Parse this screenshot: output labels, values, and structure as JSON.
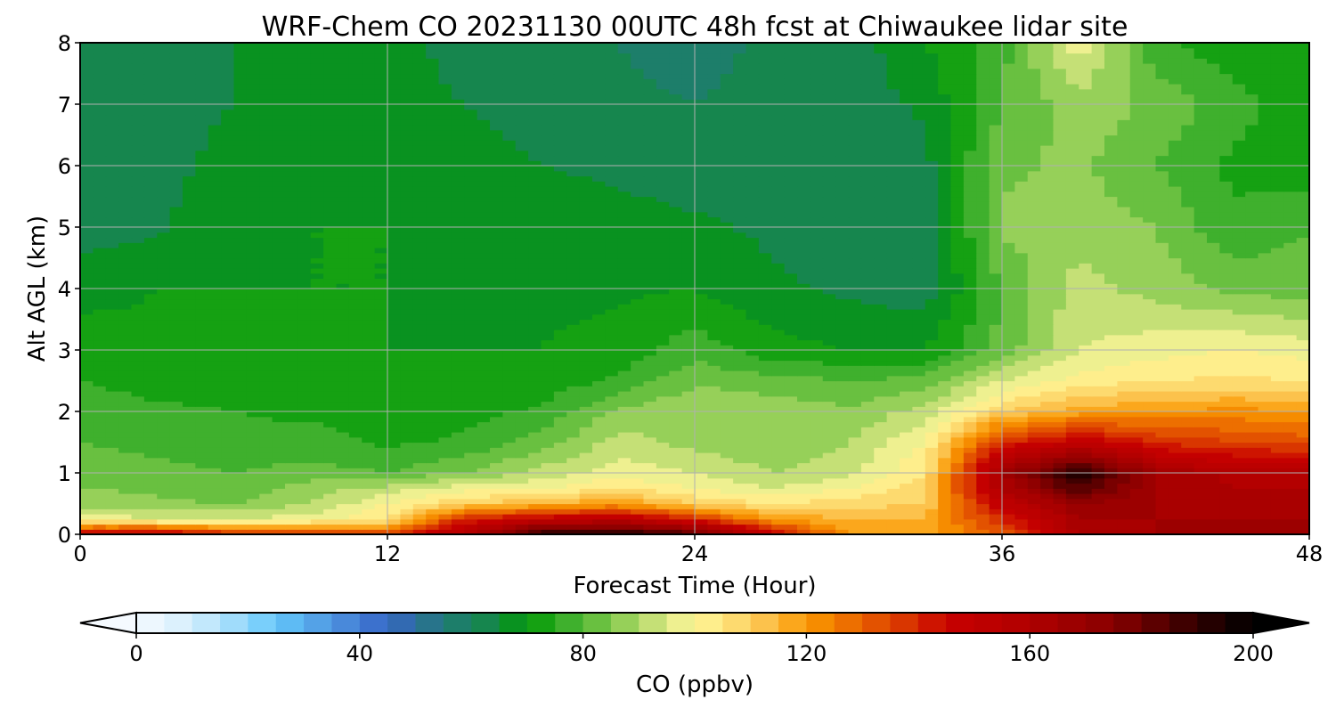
{
  "chart_data": {
    "type": "heatmap",
    "subtype": "filled-contour",
    "title": "WRF-Chem CO  20231130 00UTC 48h fcst at Chiwaukee lidar site",
    "xlabel": "Forecast Time (Hour)",
    "ylabel": "Alt AGL (km)",
    "xlim": [
      0,
      48
    ],
    "ylim": [
      0,
      8
    ],
    "xticks": [
      "0",
      "12",
      "24",
      "36",
      "48"
    ],
    "xtick_values": [
      0,
      12,
      24,
      36,
      48
    ],
    "yticks": [
      "0",
      "1",
      "2",
      "3",
      "4",
      "5",
      "6",
      "7",
      "8"
    ],
    "ytick_values": [
      0,
      1,
      2,
      3,
      4,
      5,
      6,
      7,
      8
    ],
    "grid": true,
    "x": [
      0,
      3,
      6,
      9,
      12,
      15,
      18,
      21,
      24,
      27,
      30,
      33,
      36,
      39,
      42,
      45,
      48
    ],
    "y": [
      0,
      0.25,
      0.5,
      0.75,
      1,
      1.5,
      2,
      2.5,
      3,
      4,
      5,
      6,
      7,
      8
    ],
    "z": [
      [
        150,
        155,
        140,
        140,
        135,
        160,
        195,
        195,
        185,
        150,
        120,
        118,
        130,
        160,
        165,
        165,
        165
      ],
      [
        100,
        95,
        95,
        98,
        105,
        140,
        150,
        155,
        140,
        120,
        115,
        115,
        140,
        165,
        165,
        165,
        165
      ],
      [
        88,
        86,
        85,
        90,
        100,
        110,
        115,
        120,
        110,
        105,
        108,
        110,
        150,
        170,
        165,
        162,
        162
      ],
      [
        85,
        84,
        82,
        88,
        92,
        98,
        100,
        105,
        100,
        95,
        100,
        110,
        160,
        185,
        165,
        160,
        160
      ],
      [
        83,
        82,
        80,
        82,
        80,
        85,
        92,
        98,
        95,
        90,
        93,
        105,
        165,
        195,
        165,
        158,
        158
      ],
      [
        80,
        78,
        76,
        77,
        74,
        76,
        82,
        92,
        88,
        86,
        90,
        100,
        140,
        150,
        140,
        135,
        133
      ],
      [
        78,
        76,
        75,
        74,
        72,
        73,
        76,
        86,
        90,
        88,
        86,
        92,
        110,
        118,
        120,
        122,
        120
      ],
      [
        75,
        73,
        72,
        72,
        71,
        71,
        72,
        76,
        84,
        82,
        80,
        82,
        95,
        102,
        105,
        106,
        105
      ],
      [
        73,
        71,
        70,
        71,
        70,
        70,
        70,
        72,
        78,
        72,
        70,
        70,
        82,
        95,
        98,
        100,
        98
      ],
      [
        68,
        70,
        70,
        70,
        70,
        69,
        69,
        69,
        70,
        66,
        64,
        62,
        80,
        92,
        88,
        84,
        82
      ],
      [
        63,
        64,
        69,
        70,
        70,
        69,
        68,
        67,
        66,
        64,
        62,
        61,
        86,
        88,
        85,
        76,
        80
      ],
      [
        63,
        64,
        66,
        68,
        68,
        67,
        65,
        64,
        62,
        63,
        62,
        63,
        84,
        86,
        80,
        74,
        72
      ],
      [
        64,
        64,
        65,
        66,
        66,
        65,
        63,
        61,
        60,
        62,
        62,
        66,
        80,
        88,
        84,
        77,
        72
      ],
      [
        64,
        64,
        65,
        66,
        66,
        64,
        62,
        60,
        58,
        61,
        62,
        70,
        78,
        98,
        76,
        72,
        70
      ]
    ],
    "colorbar": {
      "label": "CO  (ppbv)",
      "range": [
        0,
        200
      ],
      "step": 5,
      "extend": "both",
      "ticks": [
        "0",
        "40",
        "80",
        "120",
        "160",
        "200"
      ],
      "tick_values": [
        0,
        40,
        80,
        120,
        160,
        200
      ],
      "color_stops": [
        [
          0,
          "#f5faff"
        ],
        [
          10,
          "#d3eefc"
        ],
        [
          20,
          "#8fd6fb"
        ],
        [
          25,
          "#63c8fb"
        ],
        [
          35,
          "#4f95e0"
        ],
        [
          45,
          "#3565c6"
        ],
        [
          50,
          "#2f6e9e"
        ],
        [
          55,
          "#207a78"
        ],
        [
          65,
          "#128a40"
        ],
        [
          70,
          "#009900"
        ],
        [
          75,
          "#2aa823"
        ],
        [
          85,
          "#7ec84a"
        ],
        [
          95,
          "#dce885"
        ],
        [
          100,
          "#fff89a"
        ],
        [
          110,
          "#fcd060"
        ],
        [
          115,
          "#fbb438"
        ],
        [
          120,
          "#fa9a00"
        ],
        [
          130,
          "#e86000"
        ],
        [
          140,
          "#d42800"
        ],
        [
          145,
          "#c80000"
        ],
        [
          160,
          "#b00000"
        ],
        [
          175,
          "#880000"
        ],
        [
          190,
          "#300000"
        ],
        [
          200,
          "#000000"
        ]
      ]
    }
  }
}
